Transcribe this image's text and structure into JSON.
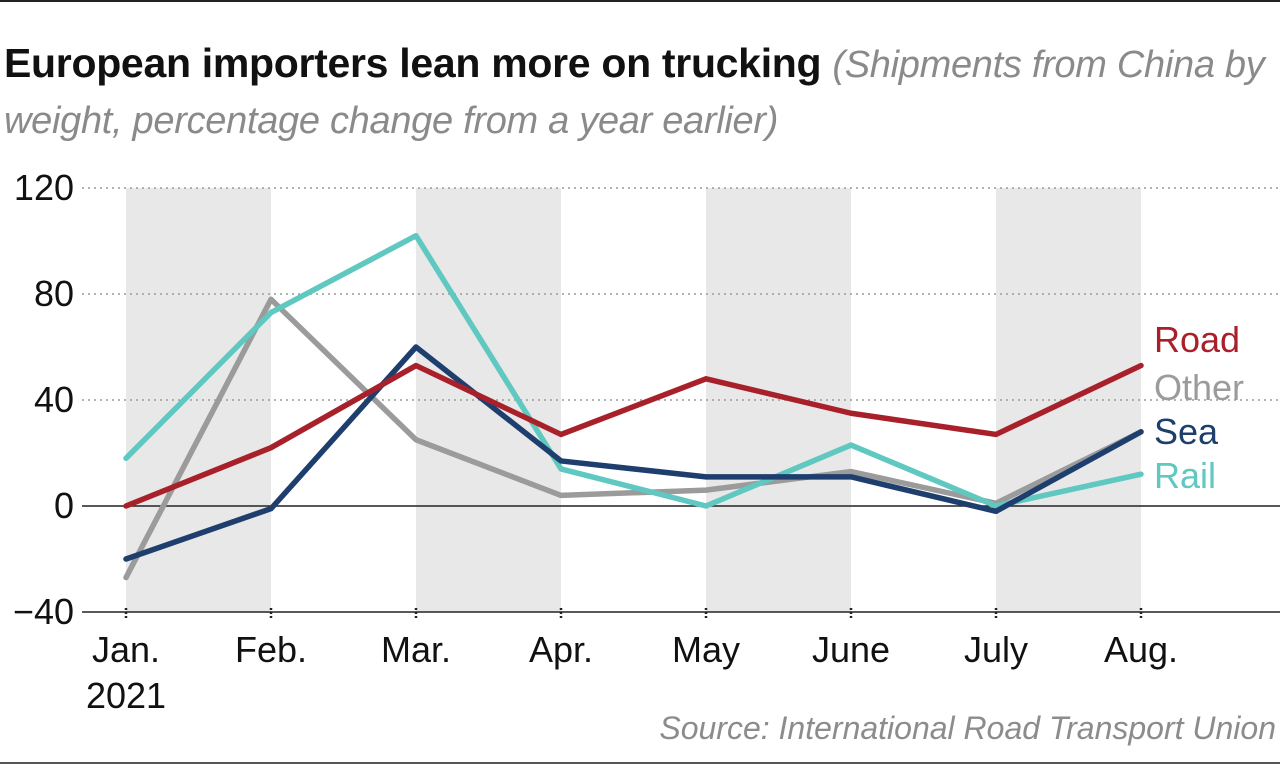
{
  "title": "European importers lean more on trucking",
  "subtitle": "(Shipments from China by weight, percentage change from a year earlier)",
  "source": "Source: International Road Transport Union",
  "chart_data": {
    "type": "line",
    "categories": [
      "Jan.",
      "Feb.",
      "Mar.",
      "Apr.",
      "May",
      "June",
      "July",
      "Aug."
    ],
    "category_sublabels": [
      "2021",
      "",
      "",
      "",
      "",
      "",
      "",
      ""
    ],
    "ylim": [
      -40,
      120
    ],
    "yticks": [
      -40,
      0,
      40,
      80,
      120
    ],
    "ytick_labels": [
      "−40",
      "0",
      "40",
      "80",
      "120"
    ],
    "grid": "dotted horizontal",
    "shaded_bands": [
      "Jan.",
      "Mar.",
      "May",
      "July"
    ],
    "series": [
      {
        "name": "Other",
        "color": "#9b9b9b",
        "values": [
          -27,
          78,
          25,
          4,
          6,
          13,
          1,
          28
        ]
      },
      {
        "name": "Rail",
        "color": "#5fc8c0",
        "values": [
          18,
          73,
          102,
          14,
          0,
          23,
          0,
          12
        ]
      },
      {
        "name": "Sea",
        "color": "#1e3f6e",
        "values": [
          -20,
          -1,
          60,
          17,
          11,
          11,
          -2,
          28
        ]
      },
      {
        "name": "Road",
        "color": "#a8202a",
        "values": [
          0,
          22,
          53,
          27,
          48,
          35,
          27,
          53
        ]
      }
    ],
    "legend_order": [
      "Road",
      "Other",
      "Sea",
      "Rail"
    ],
    "legend_placement": "right, inline at line ends"
  }
}
